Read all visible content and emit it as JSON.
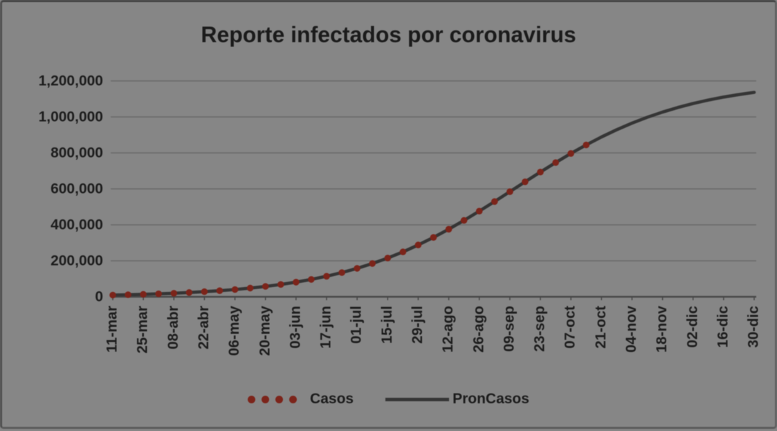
{
  "chart_data": {
    "type": "line",
    "title": "Reporte infectados por coronavirus",
    "xlabel": "",
    "ylabel": "",
    "ylim": [
      0,
      1200000
    ],
    "grid": true,
    "legend_position": "bottom",
    "x_total_days": 294,
    "x_tick_days": [
      0,
      14,
      28,
      42,
      56,
      70,
      84,
      98,
      112,
      126,
      140,
      154,
      168,
      182,
      196,
      210,
      224,
      238,
      252,
      266,
      280,
      294
    ],
    "x_tick_labels": [
      "11-mar",
      "25-mar",
      "08-abr",
      "22-abr",
      "06-may",
      "20-may",
      "03-jun",
      "17-jun",
      "01-jul",
      "15-jul",
      "29-jul",
      "12-ago",
      "26-ago",
      "09-sep",
      "23-sep",
      "07-oct",
      "21-oct",
      "04-nov",
      "18-nov",
      "02-dic",
      "16-dic",
      "30-dic"
    ],
    "y_tick_values": [
      0,
      200000,
      400000,
      600000,
      800000,
      1000000,
      1200000
    ],
    "y_tick_labels": [
      "0",
      "200,000",
      "400,000",
      "600,000",
      "800,000",
      "1,000,000",
      "1,200,000"
    ],
    "series": [
      {
        "name": "Casos",
        "style": "dots",
        "color": "#7c241a",
        "days": [
          0,
          7,
          14,
          21,
          28,
          35,
          42,
          49,
          56,
          63,
          70,
          77,
          84,
          91,
          98,
          105,
          112,
          119,
          126,
          133,
          140,
          147,
          154,
          161,
          168,
          175,
          182,
          189,
          196,
          203,
          210,
          217
        ],
        "values": [
          9600,
          11500,
          13800,
          16500,
          19800,
          23700,
          28400,
          33900,
          40500,
          48400,
          57700,
          68600,
          81400,
          96500,
          114100,
          134500,
          157900,
          184900,
          215400,
          249800,
          288000,
          330000,
          375600,
          424500,
          476100,
          529600,
          584300,
          639300,
          693500,
          746300,
          796800,
          844400
        ]
      },
      {
        "name": "PronCasos",
        "style": "line",
        "color": "#353535",
        "days": [
          0,
          7,
          14,
          21,
          28,
          35,
          42,
          49,
          56,
          63,
          70,
          77,
          84,
          91,
          98,
          105,
          112,
          119,
          126,
          133,
          140,
          147,
          154,
          161,
          168,
          175,
          182,
          189,
          196,
          203,
          210,
          217,
          224,
          231,
          238,
          245,
          252,
          259,
          266,
          273,
          280,
          287,
          294
        ],
        "values": [
          9600,
          11500,
          13800,
          16500,
          19800,
          23700,
          28400,
          33900,
          40500,
          48400,
          57700,
          68600,
          81400,
          96500,
          114100,
          134500,
          157900,
          184900,
          215400,
          249800,
          288000,
          330000,
          375600,
          424500,
          476100,
          529600,
          584300,
          639300,
          693500,
          746300,
          796800,
          844400,
          888500,
          928900,
          965400,
          998100,
          1027000,
          1052400,
          1074600,
          1093800,
          1110200,
          1124300,
          1136400
        ]
      }
    ]
  },
  "colors": {
    "background": "#868686",
    "gridline": "#6a6a6a",
    "axis": "#474747",
    "text": "#1d1d1d",
    "title_text": "#1b1b1b"
  },
  "legend": {
    "casos_label": "Casos",
    "proncasos_label": "PronCasos"
  }
}
